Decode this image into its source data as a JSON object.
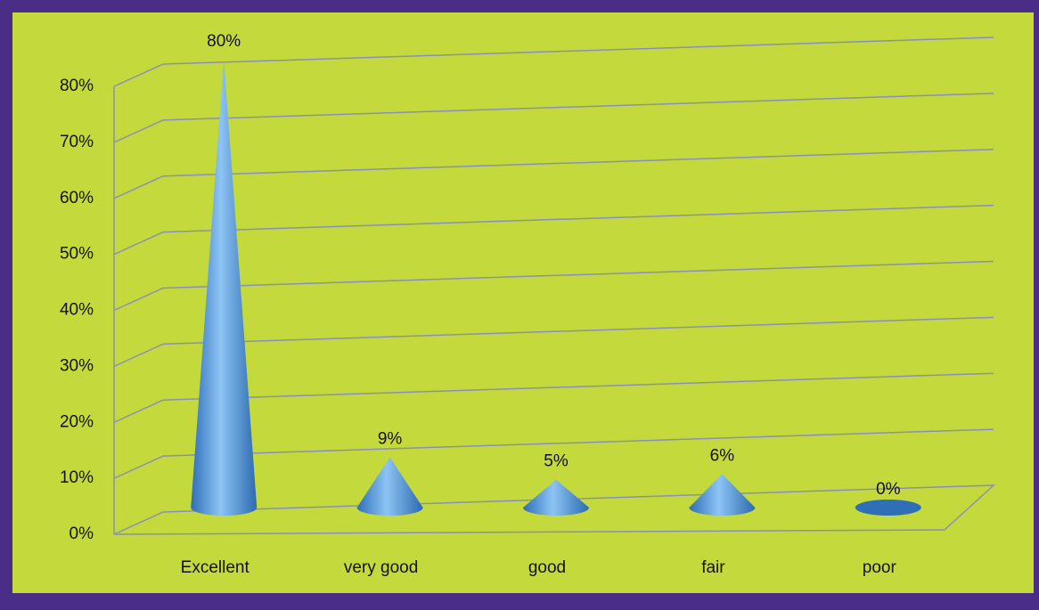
{
  "chart_data": {
    "type": "cone",
    "categories": [
      "Excellent",
      "very good",
      "good",
      "fair",
      "poor"
    ],
    "values": [
      80,
      9,
      5,
      6,
      0
    ],
    "value_labels": [
      "80%",
      "9%",
      "5%",
      "6%",
      "0%"
    ],
    "color": "#5aa2e8",
    "ylim": [
      0,
      80
    ],
    "yticks": [
      {
        "value": 0,
        "label": "0%"
      },
      {
        "value": 10,
        "label": "10%"
      },
      {
        "value": 20,
        "label": "20%"
      },
      {
        "value": 30,
        "label": "30%"
      },
      {
        "value": 40,
        "label": "40%"
      },
      {
        "value": 50,
        "label": "50%"
      },
      {
        "value": 60,
        "label": "60%"
      },
      {
        "value": 70,
        "label": "70%"
      },
      {
        "value": 80,
        "label": "80%"
      }
    ],
    "grid": true
  }
}
